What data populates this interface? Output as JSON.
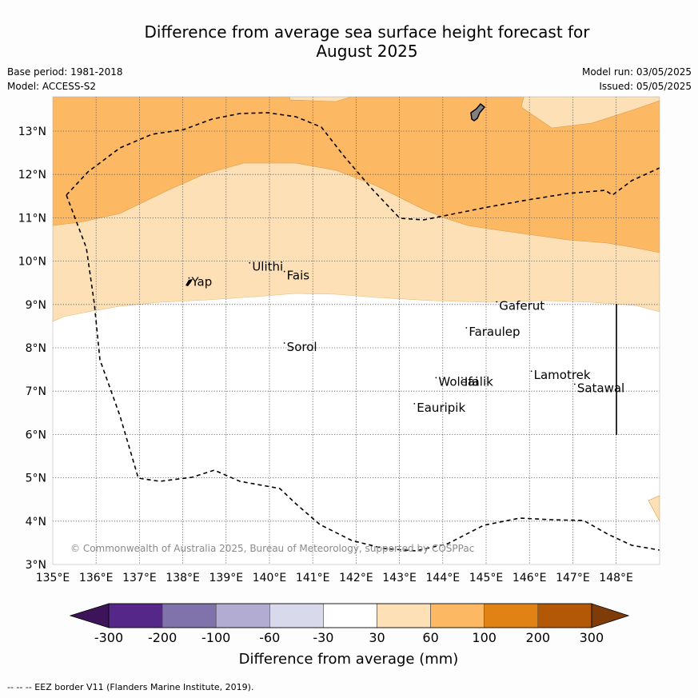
{
  "title_line1": "Difference from average sea surface height forecast for",
  "title_line2": "August 2025",
  "meta": {
    "base_period": "Base period: 1981-2018",
    "model": "Model: ACCESS-S2",
    "model_run": "Model run: 03/05/2025",
    "issued": "Issued: 05/05/2025"
  },
  "axes": {
    "lon_labels": [
      "135°E",
      "136°E",
      "137°E",
      "138°E",
      "139°E",
      "140°E",
      "141°E",
      "142°E",
      "143°E",
      "144°E",
      "145°E",
      "146°E",
      "147°E",
      "148°E"
    ],
    "lat_labels": [
      "3°N",
      "4°N",
      "5°N",
      "6°N",
      "7°N",
      "8°N",
      "9°N",
      "10°N",
      "11°N",
      "12°N",
      "13°N"
    ]
  },
  "places": [
    {
      "name": "Yap",
      "lon": 138.2,
      "lat": 9.5
    },
    {
      "name": "Ulithi",
      "lon": 139.6,
      "lat": 9.85
    },
    {
      "name": "Fais",
      "lon": 140.4,
      "lat": 9.65
    },
    {
      "name": "Gaferut",
      "lon": 145.3,
      "lat": 8.95
    },
    {
      "name": "Faraulep",
      "lon": 144.6,
      "lat": 8.35
    },
    {
      "name": "Sorol",
      "lon": 140.4,
      "lat": 8.0
    },
    {
      "name": "Woleai",
      "lon": 143.9,
      "lat": 7.2
    },
    {
      "name": "Ifalik",
      "lon": 144.5,
      "lat": 7.2
    },
    {
      "name": "Lamotrek",
      "lon": 146.1,
      "lat": 7.35
    },
    {
      "name": "Satawal",
      "lon": 147.1,
      "lat": 7.05
    },
    {
      "name": "Eauripik",
      "lon": 143.4,
      "lat": 6.6
    }
  ],
  "copyright": "© Commonwealth of Australia 2025, Bureau of Meteorology, supported by COSPPac",
  "colorbar": {
    "ticks": [
      "-300",
      "-200",
      "-100",
      "-60",
      "-30",
      "30",
      "60",
      "100",
      "200",
      "300"
    ],
    "colors": [
      "#3d1459",
      "#542788",
      "#8073ac",
      "#b2abd2",
      "#d8daeb",
      "#ffffff",
      "#fee0b6",
      "#fdb863",
      "#e08214",
      "#b35806",
      "#7f3b08"
    ],
    "label": "Difference from average (mm)"
  },
  "footer": "--  --  -- EEZ border V11 (Flanders Marine Institute, 2019)."
}
